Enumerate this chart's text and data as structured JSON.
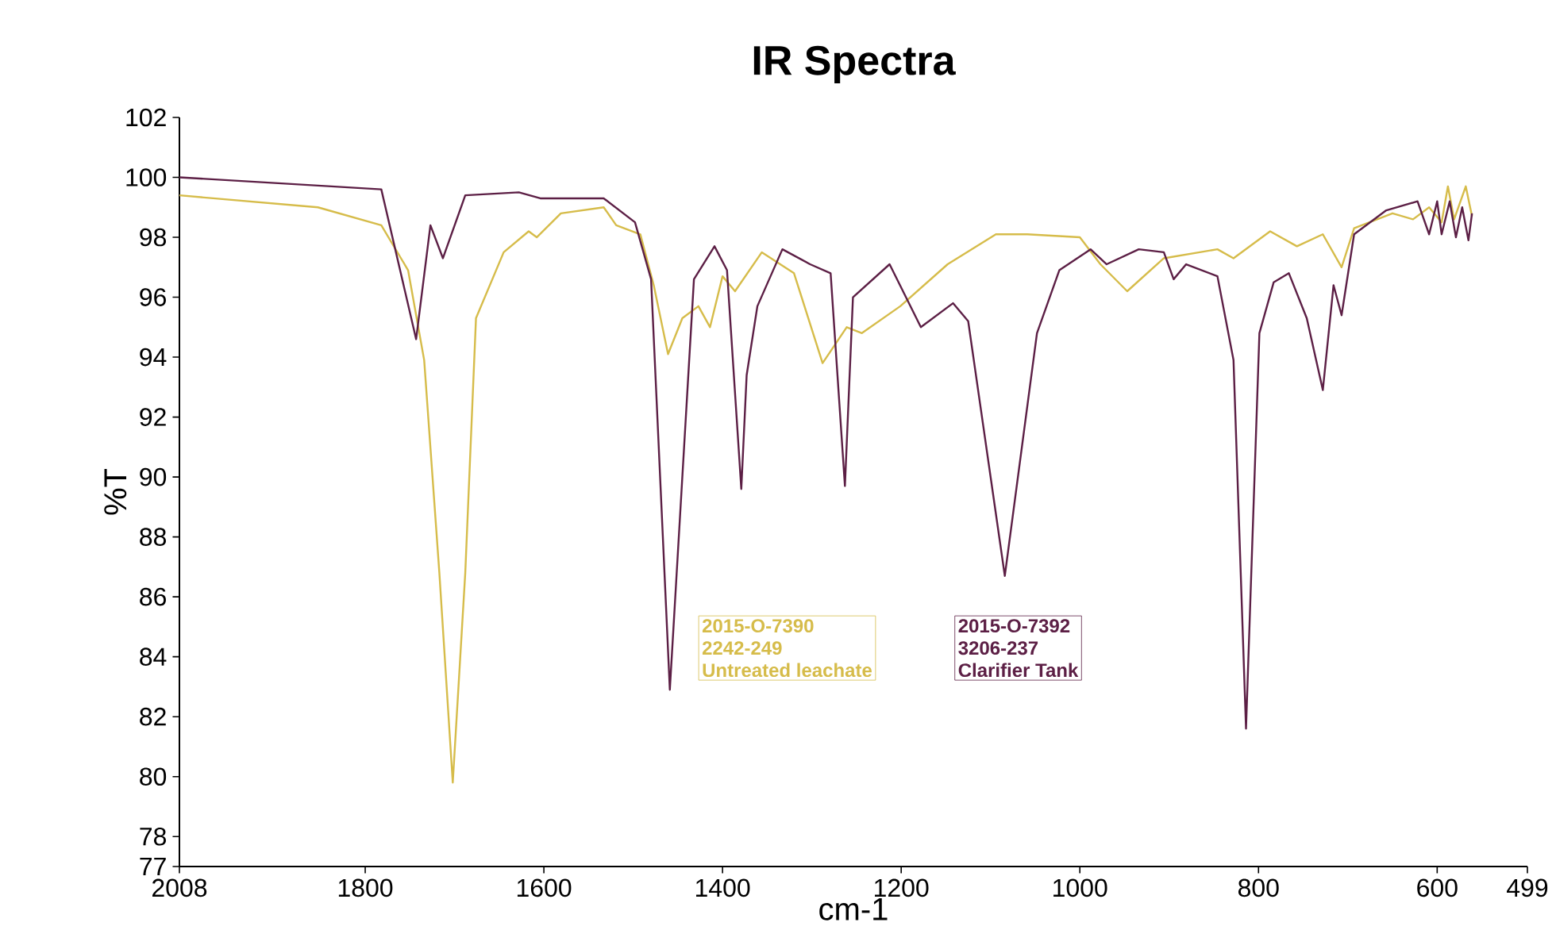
{
  "chart_data": {
    "type": "line",
    "title": "IR Spectra",
    "xlabel": "cm-1",
    "ylabel": "%T",
    "xlim": [
      2008,
      499
    ],
    "ylim": [
      77,
      102
    ],
    "xticks": [
      2008,
      1800,
      1600,
      1400,
      1200,
      1000,
      800,
      600,
      499
    ],
    "yticks": [
      77,
      78,
      80,
      82,
      84,
      86,
      88,
      90,
      92,
      94,
      96,
      98,
      100,
      102
    ],
    "marker": "none",
    "line_style": "solid",
    "legend": "bottom",
    "annotations": [
      "2015-O-7390",
      "2242-249",
      "2015-O-7392",
      "3206-237"
    ],
    "series": [
      {
        "name": "Untreated leachate",
        "color": "#d6bc4a",
        "x": [
          2008,
          1853,
          1782,
          1752,
          1734,
          1717,
          1702,
          1688,
          1676,
          1645,
          1617,
          1608,
          1581,
          1533,
          1519,
          1492,
          1477,
          1461,
          1445,
          1427,
          1414,
          1400,
          1386,
          1356,
          1320,
          1288,
          1261,
          1244,
          1201,
          1148,
          1094,
          1059,
          1000,
          977,
          947,
          906,
          846,
          828,
          787,
          757,
          728,
          707,
          693,
          650,
          627,
          609,
          595,
          588,
          581,
          568,
          561
        ],
        "values": [
          99.4,
          99.0,
          98.4,
          96.9,
          93.9,
          86.8,
          79.8,
          86.8,
          95.3,
          97.5,
          98.2,
          98.0,
          98.8,
          99.0,
          98.4,
          98.1,
          96.4,
          94.1,
          95.3,
          95.7,
          95.0,
          96.7,
          96.2,
          97.5,
          96.8,
          93.8,
          95.0,
          94.8,
          95.7,
          97.1,
          98.1,
          98.1,
          98.0,
          97.1,
          96.2,
          97.3,
          97.6,
          97.3,
          98.2,
          97.7,
          98.1,
          97.0,
          98.3,
          98.8,
          98.6,
          99.0,
          98.5,
          99.7,
          98.6,
          99.7,
          98.7
        ]
      },
      {
        "name": "Clarifier Tank",
        "color": "#5c1f45",
        "x": [
          2008,
          1782,
          1743,
          1727,
          1713,
          1688,
          1628,
          1604,
          1533,
          1498,
          1480,
          1459,
          1432,
          1409,
          1395,
          1379,
          1373,
          1361,
          1333,
          1302,
          1279,
          1263,
          1254,
          1213,
          1178,
          1142,
          1125,
          1084,
          1048,
          1023,
          988,
          970,
          934,
          906,
          895,
          881,
          846,
          828,
          814,
          799,
          783,
          766,
          746,
          728,
          716,
          707,
          693,
          657,
          622,
          609,
          600,
          595,
          586,
          579,
          572,
          565,
          561
        ],
        "values": [
          100.0,
          99.6,
          94.6,
          98.4,
          97.3,
          99.4,
          99.5,
          99.3,
          99.3,
          98.5,
          96.6,
          82.9,
          96.6,
          97.7,
          96.9,
          89.6,
          93.4,
          95.7,
          97.6,
          97.1,
          96.8,
          89.7,
          96.0,
          97.1,
          95.0,
          95.8,
          95.2,
          86.7,
          94.8,
          96.9,
          97.6,
          97.1,
          97.6,
          97.5,
          96.6,
          97.1,
          96.7,
          93.9,
          81.6,
          94.8,
          96.5,
          96.8,
          95.3,
          92.9,
          96.4,
          95.4,
          98.1,
          98.9,
          99.2,
          98.1,
          99.2,
          98.1,
          99.2,
          98.0,
          99.0,
          97.9,
          98.8
        ]
      }
    ]
  }
}
